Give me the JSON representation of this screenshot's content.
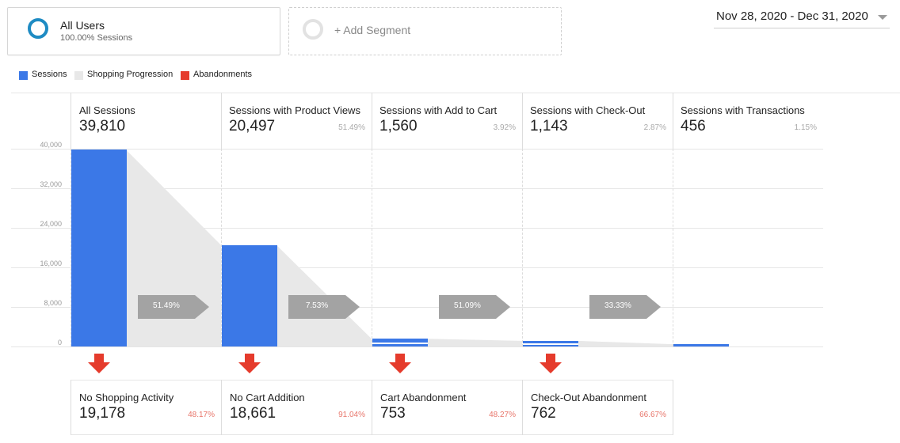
{
  "segments": {
    "all_users": {
      "title": "All Users",
      "subtitle": "100.00% Sessions"
    },
    "add_segment": {
      "label": "+ Add Segment"
    }
  },
  "date_range": {
    "label": "Nov 28, 2020 - Dec 31, 2020"
  },
  "legend": [
    {
      "label": "Sessions",
      "color": "#3b78e7"
    },
    {
      "label": "Shopping Progression",
      "color": "#e8e8e8"
    },
    {
      "label": "Abandonments",
      "color": "#e53b2c"
    }
  ],
  "y_axis": {
    "ticks": [
      "40,000",
      "32,000",
      "24,000",
      "16,000",
      "8,000",
      "0"
    ]
  },
  "stages": [
    {
      "title": "All Sessions",
      "value": "39,810",
      "pct": ""
    },
    {
      "title": "Sessions with Product Views",
      "value": "20,497",
      "pct": "51.49%"
    },
    {
      "title": "Sessions with Add to Cart",
      "value": "1,560",
      "pct": "3.92%"
    },
    {
      "title": "Sessions with Check-Out",
      "value": "1,143",
      "pct": "2.87%"
    },
    {
      "title": "Sessions with Transactions",
      "value": "456",
      "pct": "1.15%"
    }
  ],
  "progressions": [
    "51.49%",
    "7.53%",
    "51.09%",
    "33.33%"
  ],
  "abandonments": [
    {
      "title": "No Shopping Activity",
      "value": "19,178",
      "pct": "48.17%"
    },
    {
      "title": "No Cart Addition",
      "value": "18,661",
      "pct": "91.04%"
    },
    {
      "title": "Cart Abandonment",
      "value": "753",
      "pct": "48.27%"
    },
    {
      "title": "Check-Out Abandonment",
      "value": "762",
      "pct": "66.67%"
    }
  ],
  "chart_data": {
    "type": "bar",
    "categories": [
      "All Sessions",
      "Sessions with Product Views",
      "Sessions with Add to Cart",
      "Sessions with Check-Out",
      "Sessions with Transactions"
    ],
    "values": [
      39810,
      20497,
      1560,
      1143,
      456
    ],
    "ylim": [
      0,
      40000
    ],
    "title": "",
    "xlabel": "",
    "ylabel": ""
  }
}
